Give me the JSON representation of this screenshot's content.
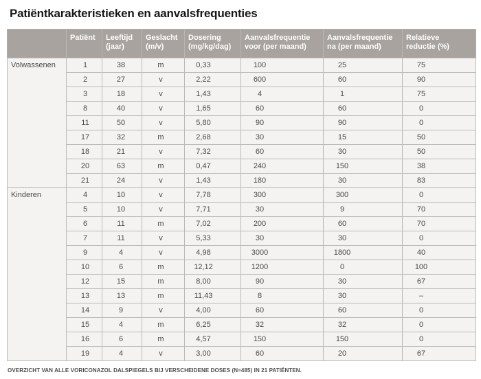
{
  "page": {
    "title": "Patiëntkarakteristieken en aanvalsfrequenties",
    "footnote": "OVERZICHT VAN ALLE VORICONAZOL DALSPIEGELS BIJ VERSCHEIDENE DOSES (N=485) IN 21 PATIËNTEN."
  },
  "colors": {
    "header_bg": "#a8a39e",
    "header_text": "#ffffff",
    "row_bg": "#f4f3f2",
    "grid_line": "#bcb9b6",
    "body_text": "#4a4a48",
    "title_text": "#17171a"
  },
  "table": {
    "columns": [
      {
        "key": "category",
        "line1": "",
        "line2": ""
      },
      {
        "key": "patient",
        "line1": "Patiënt",
        "line2": ""
      },
      {
        "key": "leeftijd",
        "line1": "Leeftijd",
        "line2": "(jaar)"
      },
      {
        "key": "geslacht",
        "line1": "Geslacht",
        "line2": "(m/v)"
      },
      {
        "key": "dosering",
        "line1": "Dosering",
        "line2": "(mg/kg/dag)"
      },
      {
        "key": "aanvalsfrequentie-voor",
        "line1": "Aanvalsfrequentie",
        "line2": "voor (per maand)"
      },
      {
        "key": "aanvalsfrequentie-na",
        "line1": "Aanvalsfrequentie",
        "line2": "na (per maand)"
      },
      {
        "key": "relatieve-reductie",
        "line1": "Relatieve",
        "line2": "reductie (%)"
      }
    ],
    "sections": [
      {
        "label": "Volwassenen",
        "rows": [
          [
            "1",
            "38",
            "m",
            "0,33",
            "100",
            "25",
            "75"
          ],
          [
            "2",
            "27",
            "v",
            "2,22",
            "600",
            "60",
            "90"
          ],
          [
            "3",
            "18",
            "v",
            "1,43",
            "4",
            "1",
            "75"
          ],
          [
            "8",
            "40",
            "v",
            "1,65",
            "60",
            "60",
            "0"
          ],
          [
            "11",
            "50",
            "v",
            "5,80",
            "90",
            "90",
            "0"
          ],
          [
            "17",
            "32",
            "m",
            "2,68",
            "30",
            "15",
            "50"
          ],
          [
            "18",
            "21",
            "v",
            "7,32",
            "60",
            "30",
            "50"
          ],
          [
            "20",
            "63",
            "m",
            "0,47",
            "240",
            "150",
            "38"
          ],
          [
            "21",
            "24",
            "v",
            "1,43",
            "180",
            "30",
            "83"
          ]
        ]
      },
      {
        "label": "Kinderen",
        "rows": [
          [
            "4",
            "10",
            "v",
            "7,78",
            "300",
            "300",
            "0"
          ],
          [
            "5",
            "10",
            "v",
            "7,71",
            "30",
            "9",
            "70"
          ],
          [
            "6",
            "11",
            "m",
            "7,02",
            "200",
            "60",
            "70"
          ],
          [
            "7",
            "11",
            "v",
            "5,33",
            "30",
            "30",
            "0"
          ],
          [
            "9",
            "4",
            "v",
            "4,98",
            "3000",
            "1800",
            "40"
          ],
          [
            "10",
            "6",
            "m",
            "12,12",
            "1200",
            "0",
            "100"
          ],
          [
            "12",
            "15",
            "m",
            "8,00",
            "90",
            "30",
            "67"
          ],
          [
            "13",
            "13",
            "m",
            "11,43",
            "8",
            "30",
            "–"
          ],
          [
            "14",
            "9",
            "v",
            "4,00",
            "60",
            "60",
            "0"
          ],
          [
            "15",
            "4",
            "m",
            "6,25",
            "32",
            "32",
            "0"
          ],
          [
            "16",
            "6",
            "m",
            "4,57",
            "150",
            "150",
            "0"
          ],
          [
            "19",
            "4",
            "v",
            "3,00",
            "60",
            "20",
            "67"
          ]
        ]
      }
    ]
  }
}
